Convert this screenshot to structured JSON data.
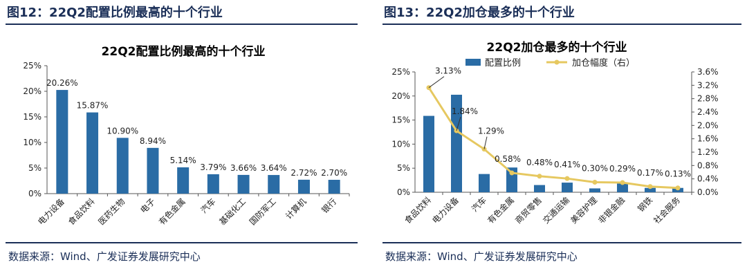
{
  "figures": [
    {
      "label": "图12：22Q2配置比例最高的十个行业",
      "source": "数据来源：Wind、广发证券发展研究中心"
    },
    {
      "label": "图13：22Q2加仓最多的十个行业",
      "source": "数据来源：Wind、广发证券发展研究中心"
    }
  ],
  "colors": {
    "bar": "#2a6ca5",
    "line": "#e6c860",
    "title_blue": "#1a2e57",
    "axis": "#555555"
  },
  "chart_data": [
    {
      "type": "bar",
      "title": "22Q2配置比例最高的十个行业",
      "categories": [
        "电力设备",
        "食品饮料",
        "医药生物",
        "电子",
        "有色金属",
        "汽车",
        "基础化工",
        "国防军工",
        "计算机",
        "银行"
      ],
      "values": [
        20.26,
        15.87,
        10.9,
        8.94,
        5.14,
        3.79,
        3.66,
        3.64,
        2.72,
        2.7
      ],
      "value_labels": [
        "20.26%",
        "15.87%",
        "10.90%",
        "8.94%",
        "5.14%",
        "3.79%",
        "3.66%",
        "3.64%",
        "2.72%",
        "2.70%"
      ],
      "ylim": [
        0,
        25
      ],
      "yticks": [
        "0%",
        "5%",
        "10%",
        "15%",
        "20%",
        "25%"
      ],
      "xlabel": "",
      "ylabel": ""
    },
    {
      "type": "bar+line",
      "title": "22Q2加仓最多的十个行业",
      "categories": [
        "食品饮料",
        "电力设备",
        "汽车",
        "有色金属",
        "商贸零售",
        "交通运输",
        "美容护理",
        "非银金融",
        "钢铁",
        "社会服务"
      ],
      "series": [
        {
          "name": "配置比例",
          "type": "bar",
          "axis": "left",
          "values": [
            15.87,
            20.26,
            3.79,
            5.14,
            1.5,
            2.0,
            0.8,
            1.8,
            0.9,
            0.9
          ]
        },
        {
          "name": "加仓幅度（右）",
          "type": "line",
          "axis": "right",
          "values": [
            3.13,
            1.84,
            1.29,
            0.58,
            0.48,
            0.41,
            0.3,
            0.29,
            0.17,
            0.13
          ],
          "value_labels": [
            "3.13%",
            "1.84%",
            "1.29%",
            "0.58%",
            "0.48%",
            "0.41%",
            "0.30%",
            "0.29%",
            "0.17%",
            "0.13%"
          ]
        }
      ],
      "ylim_left": [
        0,
        25
      ],
      "yticks_left": [
        "0%",
        "5%",
        "10%",
        "15%",
        "20%",
        "25%"
      ],
      "ylim_right": [
        0,
        3.6
      ],
      "yticks_right": [
        "0.0%",
        "0.4%",
        "0.8%",
        "1.2%",
        "1.6%",
        "2.0%",
        "2.4%",
        "2.8%",
        "3.2%",
        "3.6%"
      ],
      "legend_position": "top-center"
    }
  ]
}
